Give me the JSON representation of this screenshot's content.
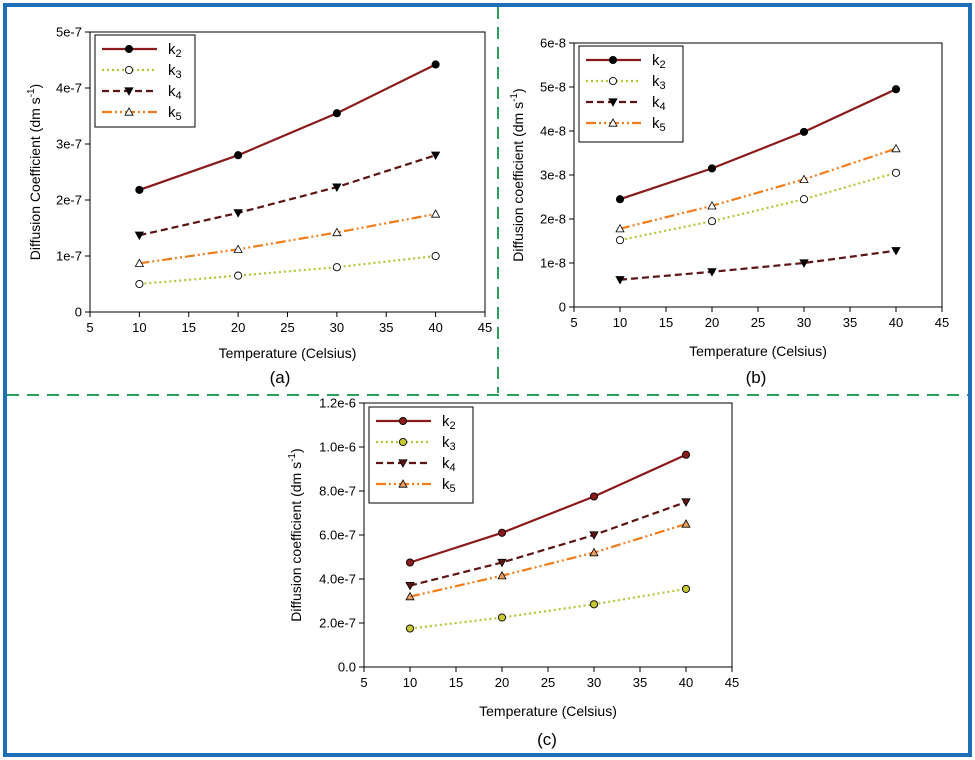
{
  "chart_data": [
    {
      "panel": "(a)",
      "type": "line",
      "xlabel": "Temperature (Celsius)",
      "ylabel": "Diffusion Coefficient (dm s",
      "ylabel_sup": "-1",
      "ylabel_close": ")",
      "xlim": [
        5,
        45
      ],
      "ylim": [
        0,
        5e-07
      ],
      "x_ticks": [
        5,
        10,
        15,
        20,
        25,
        30,
        35,
        40,
        45
      ],
      "x_tick_labels": [
        "5",
        "10",
        "15",
        "20",
        "25",
        "30",
        "35",
        "40",
        "45"
      ],
      "y_ticks": [
        0,
        1e-07,
        2e-07,
        3e-07,
        4e-07,
        5e-07
      ],
      "y_tick_labels": [
        "0",
        "1e-7",
        "2e-7",
        "3e-7",
        "4e-7",
        "5e-7"
      ],
      "legend_position": "top-left",
      "x": [
        10,
        20,
        30,
        40
      ],
      "series": [
        {
          "name": "k",
          "sub": "2",
          "values": [
            2.18e-07,
            2.8e-07,
            3.55e-07,
            4.42e-07
          ],
          "color": "#8b1a1a",
          "dash": "",
          "marker": "circle",
          "marker_fill": "#000000",
          "marker_stroke": "#000000"
        },
        {
          "name": "k",
          "sub": "3",
          "values": [
            5e-08,
            6.5e-08,
            8e-08,
            1e-07
          ],
          "color": "#b5c431",
          "dash": "2 3",
          "marker": "circle",
          "marker_fill": "#ffffff",
          "marker_stroke": "#000000"
        },
        {
          "name": "k",
          "sub": "4",
          "values": [
            1.37e-07,
            1.77e-07,
            2.23e-07,
            2.8e-07
          ],
          "color": "#5c1414",
          "dash": "7 4",
          "marker": "triangle-down",
          "marker_fill": "#000000",
          "marker_stroke": "#000000"
        },
        {
          "name": "k",
          "sub": "5",
          "values": [
            8.7e-08,
            1.12e-07,
            1.42e-07,
            1.75e-07
          ],
          "color": "#f07d1a",
          "dash": "10 3 2 3 2 3",
          "marker": "triangle-up",
          "marker_fill": "#ffffff",
          "marker_stroke": "#000000"
        }
      ]
    },
    {
      "panel": "(b)",
      "type": "line",
      "xlabel": "Temperature (Celsius)",
      "ylabel": "Diffusion coefficient (dm s",
      "ylabel_sup": "-1",
      "ylabel_close": ")",
      "xlim": [
        5,
        45
      ],
      "ylim": [
        0,
        6e-08
      ],
      "x_ticks": [
        5,
        10,
        15,
        20,
        25,
        30,
        35,
        40,
        45
      ],
      "x_tick_labels": [
        "5",
        "10",
        "15",
        "20",
        "25",
        "30",
        "35",
        "40",
        "45"
      ],
      "y_ticks": [
        0,
        1e-08,
        2e-08,
        3e-08,
        4e-08,
        5e-08,
        6e-08
      ],
      "y_tick_labels": [
        "0",
        "1e-8",
        "2e-8",
        "3e-8",
        "4e-8",
        "5e-8",
        "6e-8"
      ],
      "legend_position": "top-left",
      "x": [
        10,
        20,
        30,
        40
      ],
      "series": [
        {
          "name": "k",
          "sub": "2",
          "values": [
            2.45e-08,
            3.15e-08,
            3.98e-08,
            4.95e-08
          ],
          "color": "#8b1a1a",
          "dash": "",
          "marker": "circle",
          "marker_fill": "#000000",
          "marker_stroke": "#000000"
        },
        {
          "name": "k",
          "sub": "3",
          "values": [
            1.52e-08,
            1.95e-08,
            2.45e-08,
            3.05e-08
          ],
          "color": "#b5c431",
          "dash": "2 3",
          "marker": "circle",
          "marker_fill": "#ffffff",
          "marker_stroke": "#000000"
        },
        {
          "name": "k",
          "sub": "4",
          "values": [
            6.2e-09,
            8e-09,
            1e-08,
            1.28e-08
          ],
          "color": "#5c1414",
          "dash": "7 4",
          "marker": "triangle-down",
          "marker_fill": "#000000",
          "marker_stroke": "#000000"
        },
        {
          "name": "k",
          "sub": "5",
          "values": [
            1.78e-08,
            2.3e-08,
            2.9e-08,
            3.6e-08
          ],
          "color": "#f07d1a",
          "dash": "10 3 2 3 2 3",
          "marker": "triangle-up",
          "marker_fill": "#ffffff",
          "marker_stroke": "#000000"
        }
      ]
    },
    {
      "panel": "(c)",
      "type": "line",
      "xlabel": "Temperature (Celsius)",
      "ylabel": "Diffusion coefficient (dm s",
      "ylabel_sup": "-1",
      "ylabel_close": ")",
      "xlim": [
        5,
        45
      ],
      "ylim": [
        0,
        1.2e-06
      ],
      "x_ticks": [
        5,
        10,
        15,
        20,
        25,
        30,
        35,
        40,
        45
      ],
      "x_tick_labels": [
        "5",
        "10",
        "15",
        "20",
        "25",
        "30",
        "35",
        "40",
        "45"
      ],
      "y_ticks": [
        0,
        2e-07,
        4e-07,
        6e-07,
        8e-07,
        1e-06,
        1.2e-06
      ],
      "y_tick_labels": [
        "0.0",
        "2.0e-7",
        "4.0e-7",
        "6.0e-7",
        "8.0e-7",
        "1.0e-6",
        "1.2e-6"
      ],
      "legend_position": "top-left",
      "x": [
        10,
        20,
        30,
        40
      ],
      "series": [
        {
          "name": "k",
          "sub": "2",
          "values": [
            4.75e-07,
            6.1e-07,
            7.75e-07,
            9.65e-07
          ],
          "color": "#8b1a1a",
          "dash": "",
          "marker": "circle",
          "marker_fill": "#8b1a1a",
          "marker_stroke": "#000000"
        },
        {
          "name": "k",
          "sub": "3",
          "values": [
            1.75e-07,
            2.25e-07,
            2.85e-07,
            3.55e-07
          ],
          "color": "#b5c431",
          "dash": "2 3",
          "marker": "circle",
          "marker_fill": "#c8c832",
          "marker_stroke": "#000000"
        },
        {
          "name": "k",
          "sub": "4",
          "values": [
            3.7e-07,
            4.75e-07,
            6e-07,
            7.5e-07
          ],
          "color": "#5c1414",
          "dash": "7 4",
          "marker": "triangle-down",
          "marker_fill": "#5c1414",
          "marker_stroke": "#000000"
        },
        {
          "name": "k",
          "sub": "5",
          "values": [
            3.2e-07,
            4.15e-07,
            5.2e-07,
            6.5e-07
          ],
          "color": "#f07d1a",
          "dash": "10 3 2 3 2 3",
          "marker": "triangle-up",
          "marker_fill": "#e8a060",
          "marker_stroke": "#000000"
        }
      ]
    }
  ],
  "colors": {
    "frame": "#1f6fb8",
    "divider": "#2aa05a"
  }
}
